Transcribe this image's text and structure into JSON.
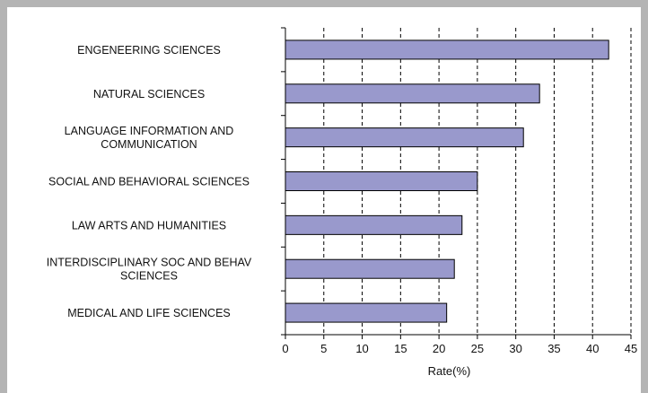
{
  "chart_data": {
    "type": "bar",
    "orientation": "horizontal",
    "categories": [
      "ENGENEERING SCIENCES",
      "NATURAL SCIENCES",
      "LANGUAGE INFORMATION AND COMMUNICATION",
      "SOCIAL AND BEHAVIORAL SCIENCES",
      "LAW ARTS AND HUMANITIES",
      "INTERDISCIPLINARY SOC AND BEHAV SCIENCES",
      "MEDICAL AND LIFE SCIENCES"
    ],
    "category_lines": [
      [
        "ENGENEERING SCIENCES"
      ],
      [
        "NATURAL SCIENCES"
      ],
      [
        "LANGUAGE INFORMATION AND",
        "COMMUNICATION"
      ],
      [
        "SOCIAL AND BEHAVIORAL SCIENCES"
      ],
      [
        "LAW ARTS AND HUMANITIES"
      ],
      [
        "INTERDISCIPLINARY SOC AND BEHAV",
        "SCIENCES"
      ],
      [
        "MEDICAL AND LIFE SCIENCES"
      ]
    ],
    "values": [
      42.1,
      33.1,
      31.0,
      25.0,
      23.0,
      22.0,
      21.0
    ],
    "xlabel": "Rate(%)",
    "ylabel": "",
    "xlim": [
      0,
      45
    ],
    "xticks": [
      0,
      5,
      10,
      15,
      20,
      25,
      30,
      35,
      40,
      45
    ],
    "xtick_labels": [
      "0",
      "5",
      "10",
      "15",
      "20",
      "25",
      "30",
      "35",
      "40",
      "45"
    ],
    "grid": "vertical dashed",
    "bar_color": "#9999cc",
    "bar_edge_color": "#000000"
  }
}
